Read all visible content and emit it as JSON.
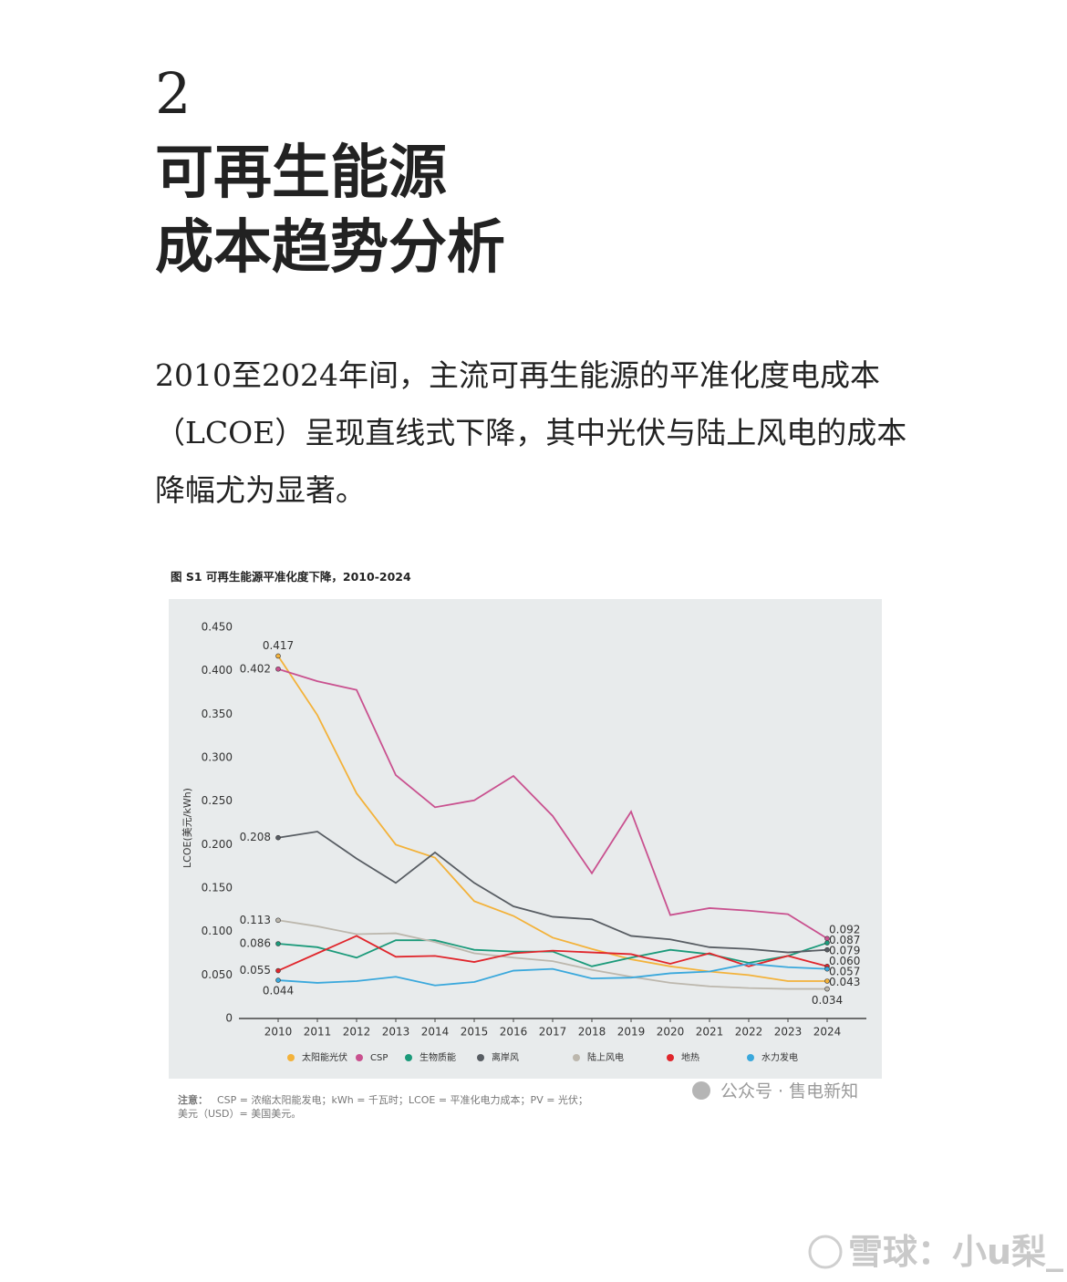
{
  "header": {
    "number": "2",
    "title_lines": [
      "可再生能源",
      "成本趋势分析"
    ]
  },
  "body": {
    "paragraph": "2010至2024年间，主流可再生能源的平准化度电成本（LCOE）呈现直线式下降，其中光伏与陆上风电的成本降幅尤为显著。"
  },
  "chart_data": {
    "type": "line",
    "title": "图 S1 可再生能源平准化度下降，2010-2024",
    "y_label": "LCOE(美元/kWh)",
    "x": [
      2010,
      2011,
      2012,
      2013,
      2014,
      2015,
      2016,
      2017,
      2018,
      2019,
      2020,
      2021,
      2022,
      2023,
      2024
    ],
    "xlim": [
      2009,
      2025
    ],
    "xticks": [
      2010,
      2011,
      2012,
      2013,
      2014,
      2015,
      2016,
      2017,
      2018,
      2019,
      2020,
      2021,
      2022,
      2023,
      2024
    ],
    "ylim": [
      0,
      0.45
    ],
    "yticks": [
      0,
      {
        "value": 0.05,
        "label": "0.050"
      },
      {
        "value": 0.1,
        "label": "0.100"
      },
      {
        "value": 0.15,
        "label": "0.150"
      },
      {
        "value": 0.2,
        "label": "0.200"
      },
      {
        "value": 0.25,
        "label": "0.250"
      },
      {
        "value": 0.3,
        "label": "0.300"
      },
      {
        "value": 0.35,
        "label": "0.350"
      },
      {
        "value": 0.4,
        "label": "0.400"
      },
      {
        "value": 0.45,
        "label": "0.450"
      }
    ],
    "series": [
      {
        "name": "太阳能光伏",
        "color": "#f3b23a",
        "values": [
          0.417,
          0.349,
          0.259,
          0.2,
          0.185,
          0.135,
          0.118,
          0.093,
          0.08,
          0.068,
          0.06,
          0.054,
          0.05,
          0.043,
          0.043
        ],
        "value_labels": [
          "0.417",
          null,
          null,
          null,
          null,
          null,
          null,
          null,
          null,
          null,
          null,
          null,
          null,
          null,
          "0.043"
        ]
      },
      {
        "name": "CSP",
        "color": "#c9518f",
        "values": [
          0.402,
          0.388,
          0.378,
          0.28,
          0.243,
          0.251,
          0.279,
          0.233,
          0.167,
          0.238,
          0.119,
          0.127,
          0.124,
          0.12,
          0.092
        ],
        "value_labels": [
          "0.402",
          null,
          null,
          null,
          null,
          null,
          null,
          null,
          null,
          null,
          null,
          null,
          null,
          null,
          "0.092"
        ]
      },
      {
        "name": "生物质能",
        "color": "#1b9a7a",
        "values": [
          0.086,
          0.082,
          0.07,
          0.09,
          0.09,
          0.079,
          0.077,
          0.077,
          0.06,
          0.07,
          0.079,
          0.074,
          0.064,
          0.072,
          0.087
        ],
        "value_labels": [
          "0.086",
          null,
          null,
          null,
          null,
          null,
          null,
          null,
          null,
          null,
          null,
          null,
          null,
          null,
          "0.087"
        ]
      },
      {
        "name": "离岸风",
        "color": "#585d63",
        "values": [
          0.208,
          0.215,
          0.184,
          0.156,
          0.191,
          0.156,
          0.129,
          0.117,
          0.114,
          0.095,
          0.091,
          0.082,
          0.08,
          0.076,
          0.079
        ],
        "value_labels": [
          "0.208",
          null,
          null,
          null,
          null,
          null,
          null,
          null,
          null,
          null,
          null,
          null,
          null,
          null,
          "0.079"
        ]
      },
      {
        "name": "陆上风电",
        "color": "#bcb7ad",
        "values": [
          0.113,
          0.106,
          0.097,
          0.098,
          0.088,
          0.075,
          0.07,
          0.066,
          0.056,
          0.048,
          0.041,
          0.037,
          0.035,
          0.034,
          0.034
        ],
        "value_labels": [
          "0.113",
          null,
          null,
          null,
          null,
          null,
          null,
          null,
          null,
          null,
          null,
          null,
          null,
          null,
          "0.034"
        ]
      },
      {
        "name": "地热",
        "color": "#e0262c",
        "values": [
          0.055,
          0.075,
          0.095,
          0.071,
          0.072,
          0.065,
          0.075,
          0.078,
          0.076,
          0.074,
          0.063,
          0.075,
          0.06,
          0.072,
          0.06
        ],
        "value_labels": [
          "0.055",
          null,
          null,
          null,
          null,
          null,
          null,
          null,
          null,
          null,
          null,
          null,
          null,
          null,
          "0.060"
        ]
      },
      {
        "name": "水力发电",
        "color": "#3aa8dc",
        "values": [
          0.044,
          0.041,
          0.043,
          0.048,
          0.038,
          0.042,
          0.055,
          0.057,
          0.046,
          0.047,
          0.052,
          0.054,
          0.063,
          0.059,
          0.057
        ],
        "value_labels": [
          "0.044",
          null,
          null,
          null,
          null,
          null,
          null,
          null,
          null,
          null,
          null,
          null,
          null,
          null,
          "0.057"
        ]
      }
    ]
  },
  "note": {
    "label": "注意：",
    "lines": [
      "CSP = 浓缩太阳能发电；kWh = 千瓦时；LCOE = 平准化电力成本；PV = 光伏；",
      "美元（USD）= 美国美元。"
    ]
  },
  "watermarks": [
    "公众号 · 售电新知",
    "雪球：小u梨_"
  ]
}
